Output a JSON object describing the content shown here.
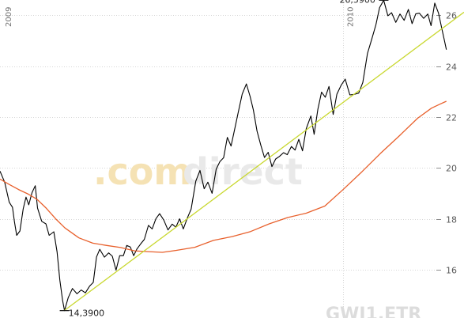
{
  "watermark": {
    "part1": ".com",
    "part2": "direct"
  },
  "ticker": "GWI1.ETR",
  "chart_data": {
    "type": "line",
    "y_axis_position": "right",
    "ylim": [
      14.1,
      26.6
    ],
    "y_ticks": [
      16,
      18,
      20,
      22,
      24,
      26
    ],
    "y_tick_labels": [
      "16",
      "18",
      "20",
      "22",
      "24",
      "26"
    ],
    "years": [
      {
        "label": "2009",
        "x": 0
      },
      {
        "label": "2010",
        "x": 74
      }
    ],
    "xlim": [
      0,
      100
    ],
    "annotations": [
      {
        "label": "14,3900",
        "kind": "low",
        "x": 13.9,
        "y": 14.39
      },
      {
        "label": "26,5900",
        "kind": "high",
        "x": 82.7,
        "y": 26.59
      }
    ],
    "series": [
      {
        "key": "price",
        "color": "#000000",
        "points": [
          [
            0.0,
            19.87
          ],
          [
            1.0,
            19.44
          ],
          [
            2.0,
            18.65
          ],
          [
            2.7,
            18.45
          ],
          [
            3.1,
            17.9
          ],
          [
            3.6,
            17.35
          ],
          [
            4.3,
            17.52
          ],
          [
            5.0,
            18.4
          ],
          [
            5.6,
            18.85
          ],
          [
            6.2,
            18.55
          ],
          [
            6.9,
            19.03
          ],
          [
            7.6,
            19.3
          ],
          [
            8.1,
            18.42
          ],
          [
            9.0,
            17.9
          ],
          [
            9.9,
            17.8
          ],
          [
            10.6,
            17.35
          ],
          [
            11.6,
            17.49
          ],
          [
            12.3,
            16.7
          ],
          [
            12.9,
            15.59
          ],
          [
            13.5,
            14.79
          ],
          [
            13.9,
            14.39
          ],
          [
            14.7,
            14.9
          ],
          [
            15.6,
            15.26
          ],
          [
            16.6,
            15.05
          ],
          [
            17.5,
            15.2
          ],
          [
            18.4,
            15.09
          ],
          [
            19.3,
            15.35
          ],
          [
            20.1,
            15.5
          ],
          [
            20.8,
            16.5
          ],
          [
            21.5,
            16.8
          ],
          [
            22.5,
            16.49
          ],
          [
            23.4,
            16.66
          ],
          [
            24.2,
            16.53
          ],
          [
            25.0,
            15.98
          ],
          [
            25.8,
            16.55
          ],
          [
            26.6,
            16.55
          ],
          [
            27.3,
            16.95
          ],
          [
            28.1,
            16.89
          ],
          [
            28.8,
            16.55
          ],
          [
            29.5,
            16.81
          ],
          [
            30.3,
            17.01
          ],
          [
            31.1,
            17.19
          ],
          [
            32.0,
            17.74
          ],
          [
            32.8,
            17.6
          ],
          [
            33.6,
            18.0
          ],
          [
            34.4,
            18.2
          ],
          [
            35.3,
            17.95
          ],
          [
            36.2,
            17.56
          ],
          [
            37.1,
            17.79
          ],
          [
            37.9,
            17.67
          ],
          [
            38.7,
            18.0
          ],
          [
            39.5,
            17.6
          ],
          [
            40.4,
            18.04
          ],
          [
            41.2,
            18.38
          ],
          [
            42.2,
            19.48
          ],
          [
            43.1,
            19.9
          ],
          [
            44.0,
            19.18
          ],
          [
            44.8,
            19.44
          ],
          [
            45.7,
            19.0
          ],
          [
            46.6,
            19.95
          ],
          [
            47.4,
            20.25
          ],
          [
            48.2,
            20.4
          ],
          [
            49.0,
            21.2
          ],
          [
            49.8,
            20.86
          ],
          [
            50.6,
            21.54
          ],
          [
            51.3,
            22.14
          ],
          [
            52.2,
            22.9
          ],
          [
            53.1,
            23.3
          ],
          [
            53.9,
            22.81
          ],
          [
            54.6,
            22.28
          ],
          [
            55.4,
            21.44
          ],
          [
            56.2,
            20.9
          ],
          [
            57.0,
            20.41
          ],
          [
            57.8,
            20.61
          ],
          [
            58.6,
            20.05
          ],
          [
            59.4,
            20.35
          ],
          [
            60.2,
            20.45
          ],
          [
            61.1,
            20.6
          ],
          [
            61.9,
            20.52
          ],
          [
            62.8,
            20.84
          ],
          [
            63.6,
            20.7
          ],
          [
            64.4,
            21.12
          ],
          [
            65.2,
            20.67
          ],
          [
            66.0,
            21.54
          ],
          [
            67.0,
            22.04
          ],
          [
            67.7,
            21.32
          ],
          [
            68.5,
            22.3
          ],
          [
            69.3,
            22.98
          ],
          [
            70.1,
            22.78
          ],
          [
            70.9,
            23.2
          ],
          [
            71.8,
            22.1
          ],
          [
            72.6,
            22.9
          ],
          [
            73.5,
            23.24
          ],
          [
            74.4,
            23.49
          ],
          [
            75.4,
            22.87
          ],
          [
            76.3,
            22.89
          ],
          [
            77.3,
            22.94
          ],
          [
            78.2,
            23.36
          ],
          [
            79.2,
            24.5
          ],
          [
            80.1,
            25.05
          ],
          [
            81.0,
            25.62
          ],
          [
            81.8,
            26.3
          ],
          [
            82.7,
            26.59
          ],
          [
            83.6,
            25.98
          ],
          [
            84.4,
            26.1
          ],
          [
            85.3,
            25.72
          ],
          [
            86.2,
            26.05
          ],
          [
            87.1,
            25.8
          ],
          [
            88.0,
            26.23
          ],
          [
            88.8,
            25.67
          ],
          [
            89.6,
            26.06
          ],
          [
            90.4,
            26.08
          ],
          [
            91.3,
            25.88
          ],
          [
            92.2,
            26.05
          ],
          [
            92.9,
            25.59
          ],
          [
            93.7,
            26.48
          ],
          [
            94.5,
            26.09
          ],
          [
            95.3,
            25.41
          ],
          [
            95.8,
            25.0
          ],
          [
            96.2,
            24.65
          ]
        ]
      },
      {
        "key": "moving-average",
        "color": "#e8602c",
        "points": [
          [
            0.0,
            19.56
          ],
          [
            2.0,
            19.35
          ],
          [
            4.0,
            19.15
          ],
          [
            6.0,
            18.98
          ],
          [
            8.0,
            18.76
          ],
          [
            10.0,
            18.41
          ],
          [
            12.0,
            18.0
          ],
          [
            14.0,
            17.64
          ],
          [
            17.0,
            17.25
          ],
          [
            20.0,
            17.04
          ],
          [
            23.0,
            16.95
          ],
          [
            26.0,
            16.87
          ],
          [
            29.0,
            16.74
          ],
          [
            32.0,
            16.71
          ],
          [
            35.0,
            16.68
          ],
          [
            38.0,
            16.76
          ],
          [
            42.0,
            16.88
          ],
          [
            46.0,
            17.15
          ],
          [
            50.0,
            17.3
          ],
          [
            54.0,
            17.5
          ],
          [
            58.0,
            17.8
          ],
          [
            62.0,
            18.05
          ],
          [
            66.0,
            18.22
          ],
          [
            70.0,
            18.5
          ],
          [
            74.0,
            19.16
          ],
          [
            78.0,
            19.85
          ],
          [
            82.0,
            20.57
          ],
          [
            86.0,
            21.25
          ],
          [
            90.0,
            21.95
          ],
          [
            93.0,
            22.35
          ],
          [
            95.0,
            22.52
          ],
          [
            96.2,
            22.62
          ]
        ]
      },
      {
        "key": "trendline",
        "color": "#c9d830",
        "points": [
          [
            13.9,
            14.4
          ],
          [
            100.0,
            26.12
          ]
        ]
      }
    ]
  }
}
